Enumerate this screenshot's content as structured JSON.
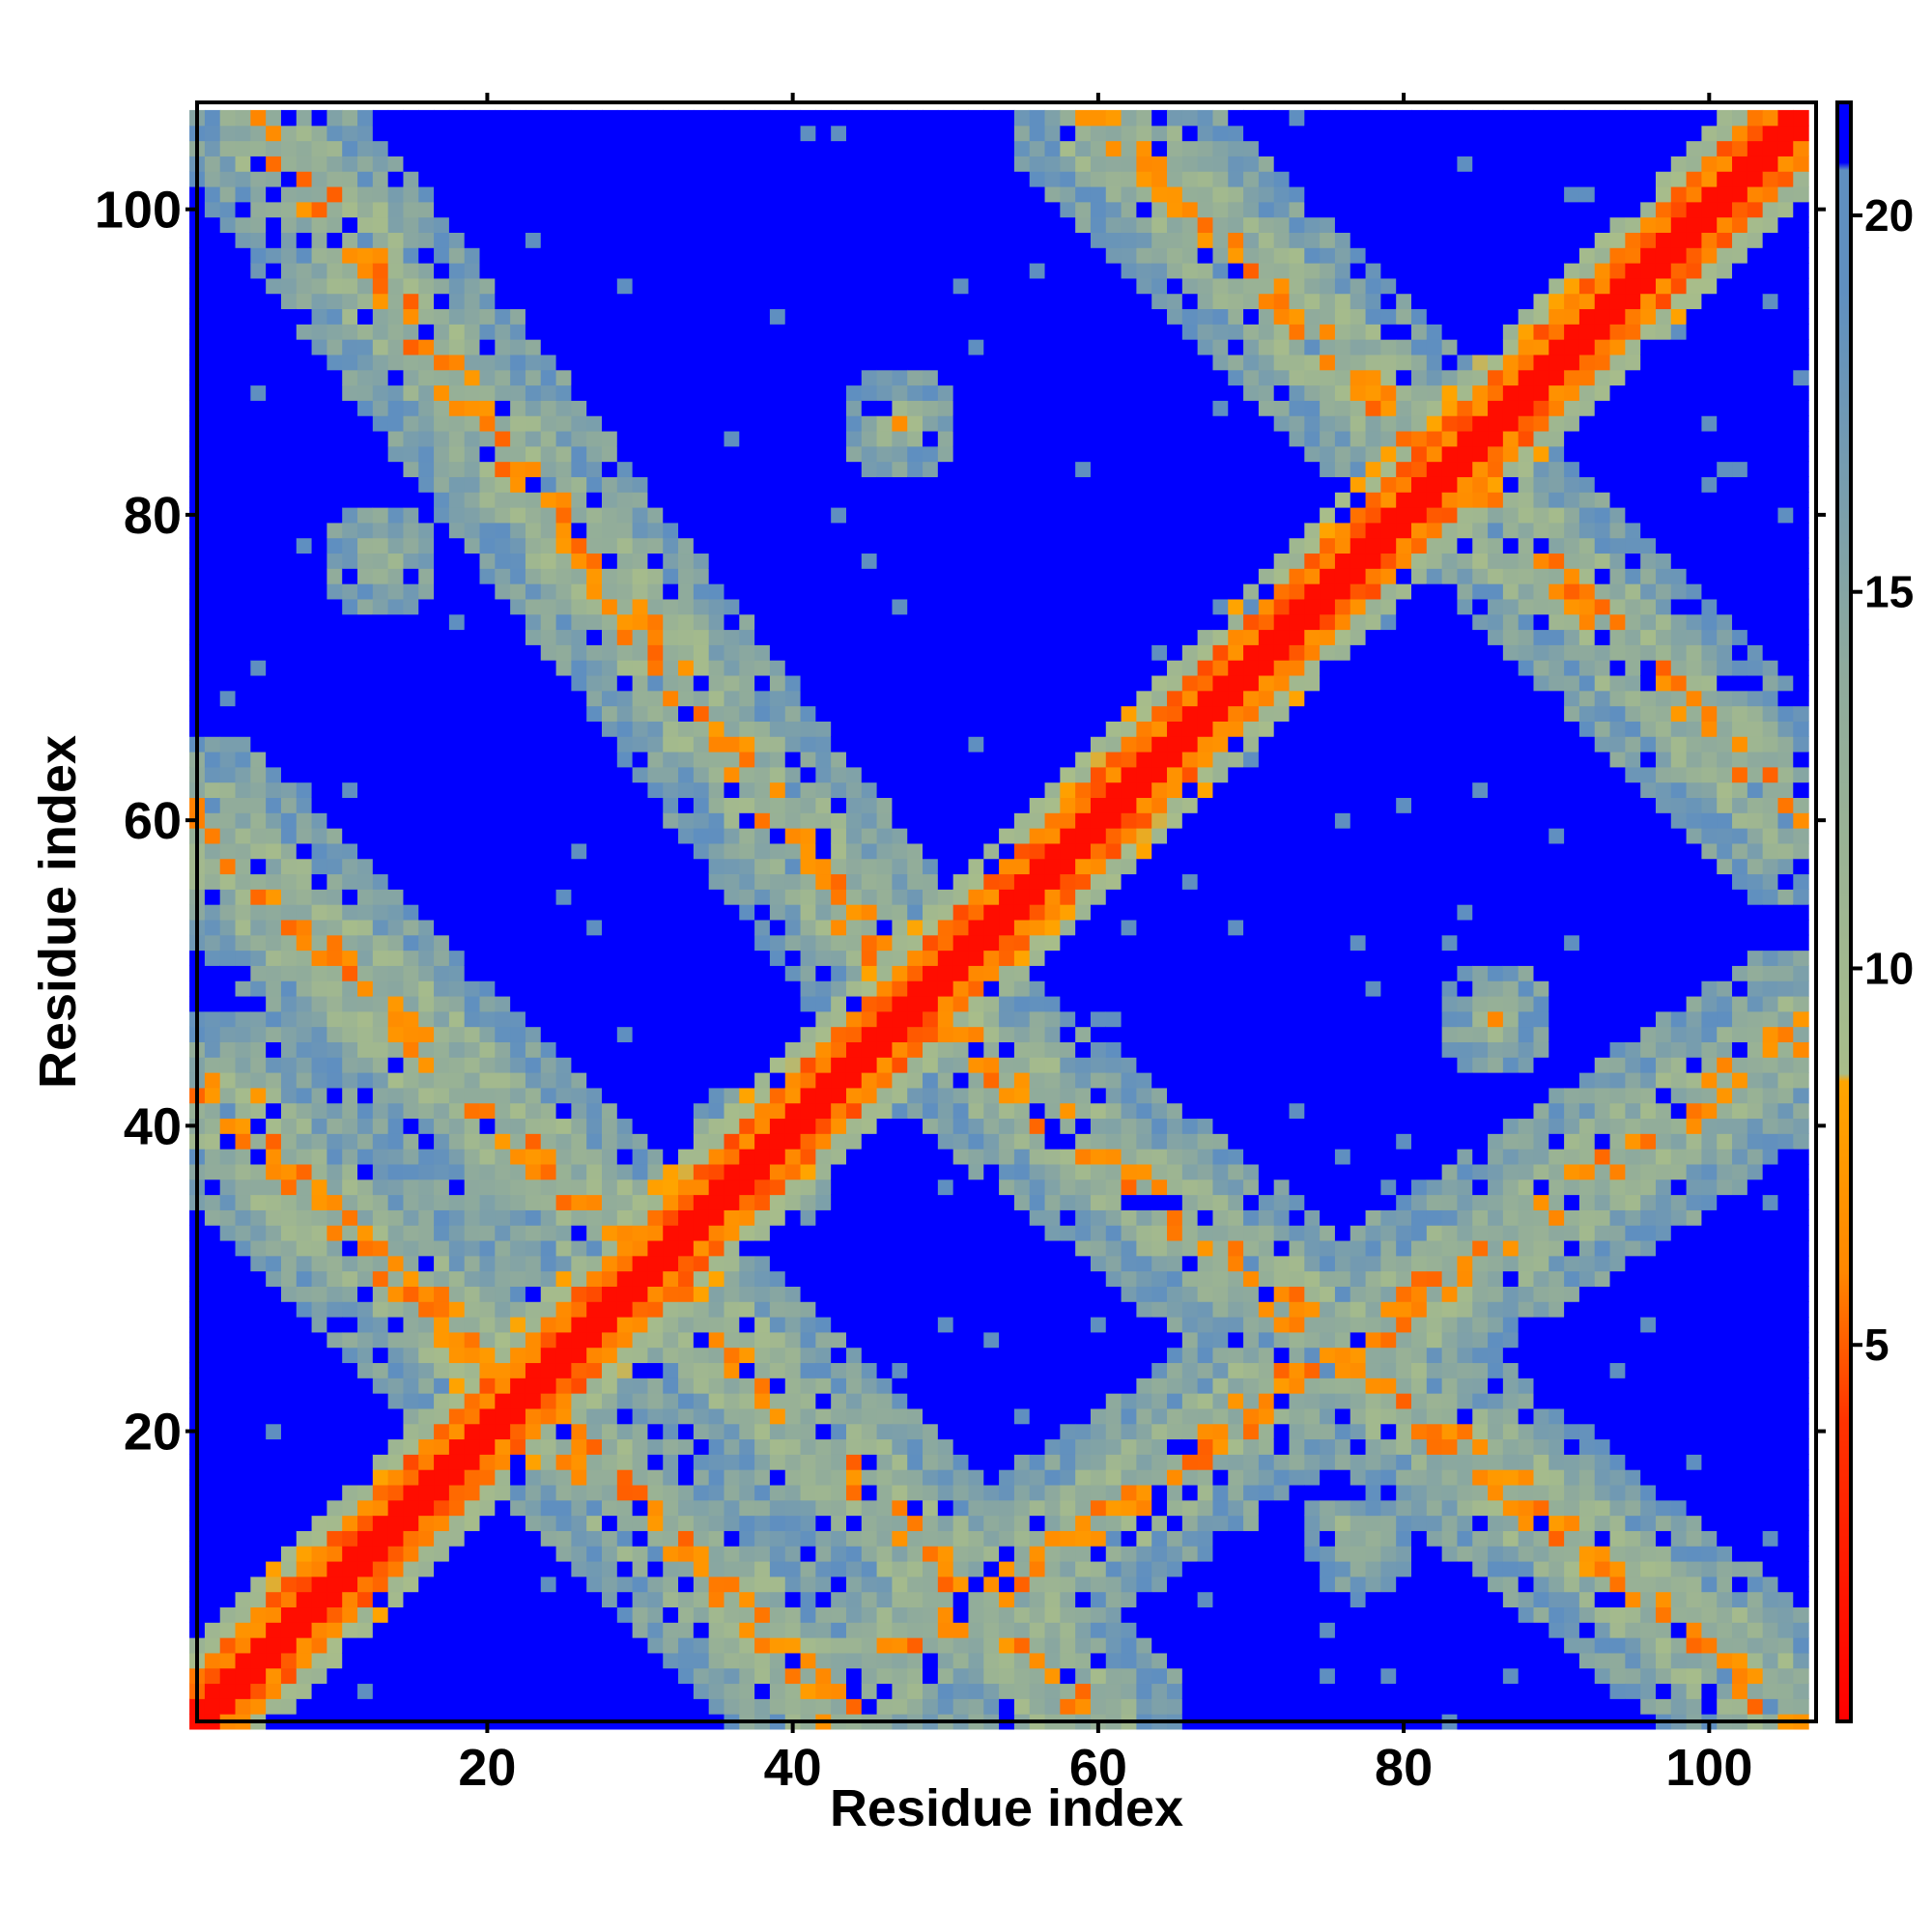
{
  "chart_data": {
    "type": "heatmap",
    "title": "",
    "xlabel": "Residue index",
    "ylabel": "Residue index",
    "xlim": [
      1,
      107
    ],
    "ylim": [
      1,
      107
    ],
    "xticks": [
      20,
      40,
      60,
      80,
      100
    ],
    "yticks": [
      20,
      40,
      60,
      80,
      100
    ],
    "n_residues": 106,
    "colorbar": {
      "min": 0,
      "max": 21.5,
      "ticks": [
        5,
        10,
        15,
        20
      ],
      "stops": [
        {
          "value": 0,
          "color": "#ff0000"
        },
        {
          "value": 4,
          "color": "#ff3300"
        },
        {
          "value": 6,
          "color": "#ff8800"
        },
        {
          "value": 8.5,
          "color": "#ffa500"
        },
        {
          "value": 8.6,
          "color": "#a8bd8a"
        },
        {
          "value": 14,
          "color": "#8eaa9d"
        },
        {
          "value": 19,
          "color": "#5f8fc0"
        },
        {
          "value": 20.6,
          "color": "#5f8fc0"
        },
        {
          "value": 20.7,
          "color": "#0000ff"
        },
        {
          "value": 21.5,
          "color": "#0000ff"
        }
      ]
    },
    "contact_features": [
      {
        "type": "diagonal",
        "from": 1,
        "to": 106
      },
      {
        "type": "anti_band",
        "from": [
          5,
          106
        ],
        "to": [
          49,
          47
        ],
        "strength": "moderate"
      },
      {
        "type": "anti_band",
        "from": [
          49,
          47
        ],
        "to": [
          106,
          1
        ],
        "strength": "moderate"
      },
      {
        "type": "anti_band",
        "from": [
          2,
          42
        ],
        "to": [
          44,
          1
        ],
        "strength": "moderate"
      },
      {
        "type": "anti_band",
        "from": [
          42,
          2
        ],
        "to": [
          106,
          46
        ],
        "strength": "moderate"
      },
      {
        "type": "anti_band",
        "from": [
          60,
          106
        ],
        "to": [
          106,
          60
        ],
        "strength": "weak"
      },
      {
        "type": "anti_band",
        "from": [
          1,
          60
        ],
        "to": [
          60,
          1
        ],
        "strength": "weak"
      },
      {
        "type": "spot",
        "x": 43,
        "y": 53
      },
      {
        "type": "spot",
        "x": 53,
        "y": 43
      },
      {
        "type": "spot",
        "x": 37,
        "y": 39
      },
      {
        "type": "spot",
        "x": 39,
        "y": 37
      },
      {
        "type": "spot",
        "x": 13,
        "y": 77
      },
      {
        "type": "spot",
        "x": 77,
        "y": 13
      },
      {
        "type": "spot",
        "x": 47,
        "y": 86
      },
      {
        "type": "spot",
        "x": 86,
        "y": 47
      },
      {
        "type": "spot",
        "x": 5,
        "y": 42
      },
      {
        "type": "spot",
        "x": 42,
        "y": 5
      }
    ]
  }
}
